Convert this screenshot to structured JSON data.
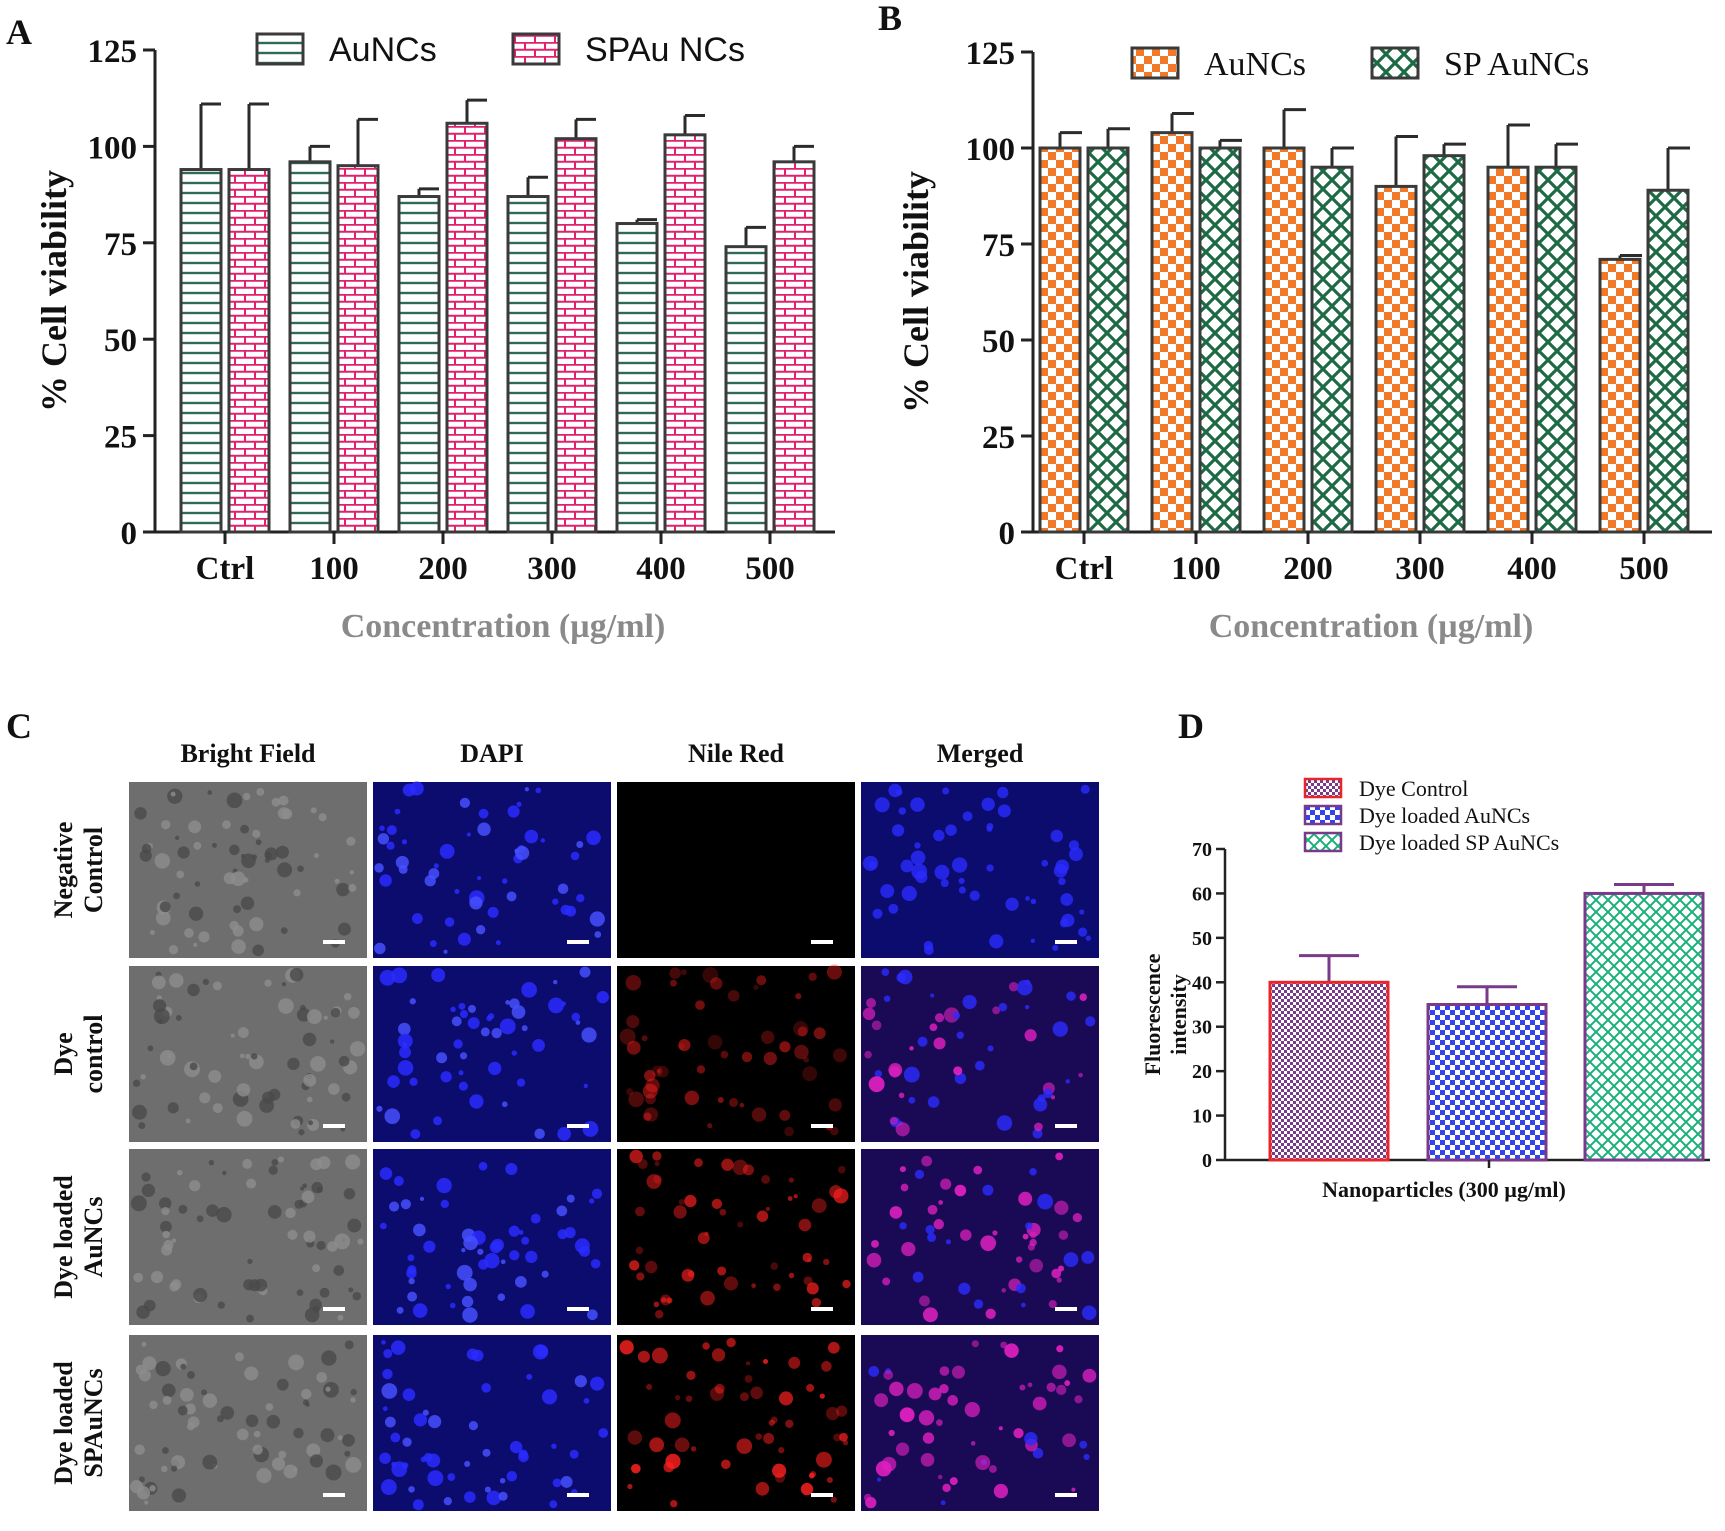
{
  "panels": {
    "A": "A",
    "B": "B",
    "C": "C",
    "D": "D"
  },
  "colors": {
    "green": "#2e6b55",
    "pink": "#e0226e",
    "orange": "#f07a2a",
    "dark_green": "#1d6a45",
    "red_outline": "#e8252a",
    "violet": "#7a3a8a",
    "blue_check": "#3344ee",
    "teal_cross": "#1ab07a"
  },
  "chart_data": [
    {
      "id": "A",
      "type": "bar",
      "categories": [
        "Ctrl",
        "100",
        "200",
        "300",
        "400",
        "500"
      ],
      "series": [
        {
          "name": "AuNCs",
          "values": [
            94,
            96,
            87,
            87,
            80,
            74
          ],
          "errors": [
            17,
            4,
            2,
            5,
            1,
            5
          ],
          "pattern": "hlines",
          "color": "#2e6b55"
        },
        {
          "name": "SPAu NCs",
          "values": [
            94,
            95,
            106,
            102,
            103,
            96
          ],
          "errors": [
            17,
            12,
            6,
            5,
            5,
            4
          ],
          "pattern": "bricks",
          "color": "#e0226e"
        }
      ],
      "yticks": [
        "0",
        "25",
        "50",
        "75",
        "100",
        "125"
      ],
      "ylim": [
        0,
        125
      ],
      "ylabel": "% Cell viability",
      "xlabel": "Concentration (µg/ml)",
      "legend": "top"
    },
    {
      "id": "B",
      "type": "bar",
      "categories": [
        "Ctrl",
        "100",
        "200",
        "300",
        "400",
        "500"
      ],
      "series": [
        {
          "name": "AuNCs",
          "values": [
            100,
            104,
            100,
            90,
            95,
            71
          ],
          "errors": [
            4,
            5,
            10,
            13,
            11,
            1
          ],
          "pattern": "checker",
          "color": "#f07a2a"
        },
        {
          "name": "SP AuNCs",
          "values": [
            100,
            100,
            95,
            98,
            95,
            89
          ],
          "errors": [
            5,
            2,
            5,
            3,
            6,
            11
          ],
          "pattern": "cross",
          "color": "#1d6a45"
        }
      ],
      "yticks": [
        "0",
        "25",
        "50",
        "75",
        "100",
        "125"
      ],
      "ylim": [
        0,
        125
      ],
      "ylabel": "% Cell viability",
      "xlabel": "Concentration (µg/ml)",
      "legend": "top"
    },
    {
      "id": "D",
      "type": "bar",
      "categories": [
        "Dye Control",
        "Dye loaded AuNCs",
        "Dye loaded SP AuNCs"
      ],
      "values": [
        40,
        35,
        60
      ],
      "errors": [
        6,
        4,
        2
      ],
      "patterns": [
        "fine-check",
        "checker",
        "cross"
      ],
      "yticks": [
        "0",
        "10",
        "20",
        "30",
        "40",
        "50",
        "60",
        "70"
      ],
      "ylim": [
        0,
        70
      ],
      "ylabel_lines": [
        "Fluorescence",
        "intensity"
      ],
      "xlabel": "Nanoparticles (300 µg/ml)",
      "legend": "top"
    }
  ],
  "microscopy": {
    "columns": [
      "Bright Field",
      "DAPI",
      "Nile Red",
      "Merged"
    ],
    "rows": [
      {
        "lines": [
          "Negative",
          "Control"
        ]
      },
      {
        "lines": [
          "Dye",
          "control"
        ]
      },
      {
        "lines": [
          "Dye loaded",
          "AuNCs"
        ]
      },
      {
        "lines": [
          "Dye loaded",
          "SPAuNCs"
        ]
      }
    ],
    "red_intensity": [
      0,
      0.55,
      0.75,
      0.9
    ],
    "magenta_intensity": [
      0,
      0.45,
      0.7,
      0.85
    ]
  }
}
